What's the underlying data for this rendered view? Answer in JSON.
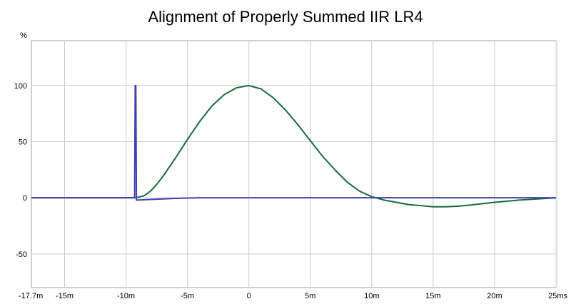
{
  "chart_data": {
    "type": "line",
    "title": "Alignment of Properly Summed IIR LR4",
    "y_unit": "%",
    "x_unit": "ms",
    "xlim": [
      -17.7,
      25
    ],
    "ylim": [
      -80,
      140
    ],
    "grid": true,
    "x_ticks": [
      {
        "value": -17.7,
        "label": "-17.7m"
      },
      {
        "value": -15,
        "label": "-15m"
      },
      {
        "value": -10,
        "label": "-10m"
      },
      {
        "value": -5,
        "label": "-5m"
      },
      {
        "value": 0,
        "label": "0"
      },
      {
        "value": 5,
        "label": "5m"
      },
      {
        "value": 10,
        "label": "10m"
      },
      {
        "value": 15,
        "label": "15m"
      },
      {
        "value": 20,
        "label": "20m"
      },
      {
        "value": 25,
        "label": "25ms"
      }
    ],
    "y_ticks": [
      {
        "value": 100,
        "label": "100"
      },
      {
        "value": 50,
        "label": "50"
      },
      {
        "value": 0,
        "label": "0"
      },
      {
        "value": -50,
        "label": "-50"
      }
    ],
    "series": [
      {
        "color": "#1a6b3c",
        "x": [
          -17.7,
          -9.2,
          -9.0,
          -8.5,
          -8.0,
          -7.5,
          -7.0,
          -6.5,
          -6.0,
          -5.0,
          -4.0,
          -3.0,
          -2.0,
          -1.0,
          0.0,
          1.0,
          2.0,
          3.0,
          4.0,
          5.0,
          6.0,
          7.0,
          8.0,
          9.0,
          10.0,
          11.0,
          12.0,
          13.0,
          14.0,
          15.0,
          16.0,
          17.0,
          18.0,
          20.0,
          22.0,
          25.0
        ],
        "y": [
          0,
          0,
          0.5,
          2,
          6,
          12,
          19,
          27,
          35,
          52,
          68,
          82,
          92,
          98,
          100,
          97,
          89,
          78,
          65,
          51,
          37,
          25,
          14,
          6,
          1,
          -2,
          -4,
          -6,
          -7,
          -8,
          -8,
          -7.5,
          -6.5,
          -4,
          -2,
          0
        ]
      },
      {
        "color": "#4040b0",
        "x": [
          -17.7,
          -9.3,
          -9.25,
          -9.2,
          -9.15,
          -9.1,
          -8.0,
          -6.0,
          -4.0,
          -2.0,
          0.0,
          5.0,
          10.0,
          15.0,
          20.0,
          25.0
        ],
        "y": [
          0,
          0,
          100,
          100,
          -2,
          -2,
          -1.5,
          -0.5,
          0,
          0,
          0,
          0,
          0,
          0,
          0,
          0
        ]
      }
    ]
  }
}
